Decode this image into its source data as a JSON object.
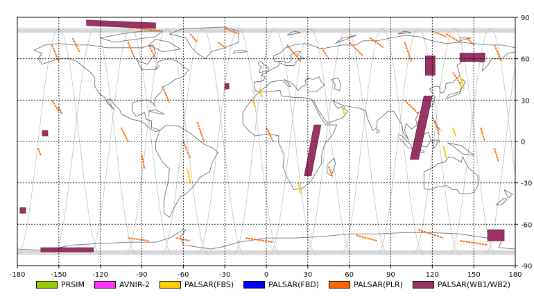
{
  "map": {
    "projection": "equirectangular",
    "lon_range": [
      -180,
      180
    ],
    "lat_range": [
      -90,
      90
    ],
    "grid": "dashed",
    "x_ticks": [
      "-180",
      "-150",
      "-120",
      "-90",
      "-60",
      "-30",
      "0",
      "30",
      "60",
      "90",
      "120",
      "150",
      "180"
    ],
    "y_ticks": [
      "90",
      "60",
      "30",
      "0",
      "-30",
      "-60",
      "-90"
    ]
  },
  "legend": [
    {
      "label": "PRSIM",
      "color": "#99cc00"
    },
    {
      "label": "AVNIR-2",
      "color": "#ff33ff"
    },
    {
      "label": "PALSAR(FBS)",
      "color": "#ffcc00"
    },
    {
      "label": "PALSAR(FBD)",
      "color": "#0000ff"
    },
    {
      "label": "PALSAR(PLR)",
      "color": "#ff6600"
    },
    {
      "label": "PALSAR(WB1/WB2)",
      "color": "#993366"
    }
  ],
  "colors": {
    "coastline": "#707070",
    "orbit": "#c0c0c0",
    "grid": "#000000"
  },
  "wb_scenes": [
    {
      "lon": [
        -130,
        -80
      ],
      "lat": [
        88,
        86
      ],
      "lon2": [
        -130,
        -80
      ],
      "latb": [
        84,
        82
      ]
    },
    {
      "lon": [
        -30,
        -27
      ],
      "lat": [
        42,
        38
      ]
    },
    {
      "lon": [
        -162,
        -158
      ],
      "lat": [
        8,
        4
      ]
    },
    {
      "lon": [
        -178,
        -174
      ],
      "lat": [
        -48,
        -52
      ]
    },
    {
      "lon": [
        -163,
        -125
      ],
      "lat": [
        -77,
        -80
      ]
    },
    {
      "lon": [
        115,
        122
      ],
      "lat": [
        62,
        48
      ]
    },
    {
      "lon": [
        140,
        158
      ],
      "lat": [
        64,
        58
      ]
    },
    {
      "lon": [
        160,
        172
      ],
      "lat": [
        -64,
        -72
      ]
    }
  ],
  "wb_strips": [
    {
      "from": [
        37,
        12
      ],
      "to": [
        30,
        -25
      ],
      "width": 5
    },
    {
      "from": [
        117,
        33
      ],
      "to": [
        107,
        -13
      ],
      "width": 6
    }
  ],
  "plr_tracks": [
    [
      [
        -155,
        70
      ],
      [
        -150,
        58
      ]
    ],
    [
      [
        -140,
        75
      ],
      [
        -135,
        65
      ]
    ],
    [
      [
        -100,
        72
      ],
      [
        -95,
        60
      ]
    ],
    [
      [
        -85,
        70
      ],
      [
        -80,
        60
      ]
    ],
    [
      [
        -55,
        78
      ],
      [
        -50,
        72
      ]
    ],
    [
      [
        -35,
        72
      ],
      [
        -30,
        68
      ]
    ],
    [
      [
        -30,
        82
      ],
      [
        -20,
        78
      ]
    ],
    [
      [
        -105,
        10
      ],
      [
        -100,
        0
      ]
    ],
    [
      [
        -75,
        40
      ],
      [
        -70,
        28
      ]
    ],
    [
      [
        -60,
        0
      ],
      [
        -55,
        -12
      ]
    ],
    [
      [
        -50,
        14
      ],
      [
        -45,
        0
      ]
    ],
    [
      [
        -150,
        25
      ],
      [
        -148,
        20
      ]
    ],
    [
      [
        -155,
        30
      ],
      [
        -150,
        22
      ]
    ],
    [
      [
        -90,
        -10
      ],
      [
        -88,
        -20
      ]
    ],
    [
      [
        -165,
        -5
      ],
      [
        -163,
        -10
      ]
    ],
    [
      [
        15,
        70
      ],
      [
        25,
        58
      ]
    ],
    [
      [
        40,
        68
      ],
      [
        45,
        60
      ]
    ],
    [
      [
        60,
        72
      ],
      [
        70,
        62
      ]
    ],
    [
      [
        75,
        75
      ],
      [
        85,
        68
      ]
    ],
    [
      [
        100,
        72
      ],
      [
        105,
        58
      ]
    ],
    [
      [
        130,
        78
      ],
      [
        140,
        72
      ]
    ],
    [
      [
        145,
        75
      ],
      [
        150,
        70
      ]
    ],
    [
      [
        165,
        70
      ],
      [
        170,
        58
      ]
    ],
    [
      [
        100,
        30
      ],
      [
        110,
        20
      ]
    ],
    [
      [
        122,
        15
      ],
      [
        125,
        5
      ]
    ],
    [
      [
        135,
        50
      ],
      [
        140,
        42
      ]
    ],
    [
      [
        155,
        10
      ],
      [
        158,
        0
      ]
    ],
    [
      [
        165,
        -5
      ],
      [
        168,
        -15
      ]
    ],
    [
      [
        0,
        10
      ],
      [
        5,
        0
      ]
    ],
    [
      [
        45,
        -18
      ],
      [
        48,
        -26
      ]
    ],
    [
      [
        -120,
        85
      ],
      [
        -75,
        80
      ]
    ],
    [
      [
        -100,
        -70
      ],
      [
        -85,
        -72
      ]
    ],
    [
      [
        -15,
        -70
      ],
      [
        5,
        -73
      ]
    ],
    [
      [
        65,
        -68
      ],
      [
        80,
        -72
      ]
    ],
    [
      [
        110,
        -64
      ],
      [
        128,
        -70
      ]
    ],
    [
      [
        140,
        -72
      ],
      [
        160,
        -75
      ]
    ],
    [
      [
        -65,
        -70
      ],
      [
        -55,
        -72
      ]
    ],
    [
      [
        120,
        80
      ],
      [
        130,
        76
      ]
    ]
  ],
  "fbs_tracks": [
    [
      [
        -5,
        38
      ],
      [
        -3,
        32
      ]
    ],
    [
      [
        -57,
        -20
      ],
      [
        -55,
        -30
      ]
    ],
    [
      [
        23,
        -30
      ],
      [
        25,
        -38
      ]
    ],
    [
      [
        55,
        25
      ],
      [
        57,
        18
      ]
    ],
    [
      [
        128,
        -3
      ],
      [
        130,
        -12
      ]
    ],
    [
      [
        140,
        48
      ],
      [
        143,
        38
      ]
    ],
    [
      [
        135,
        10
      ],
      [
        137,
        4
      ]
    ],
    [
      [
        -10,
        30
      ],
      [
        -8,
        25
      ]
    ]
  ]
}
